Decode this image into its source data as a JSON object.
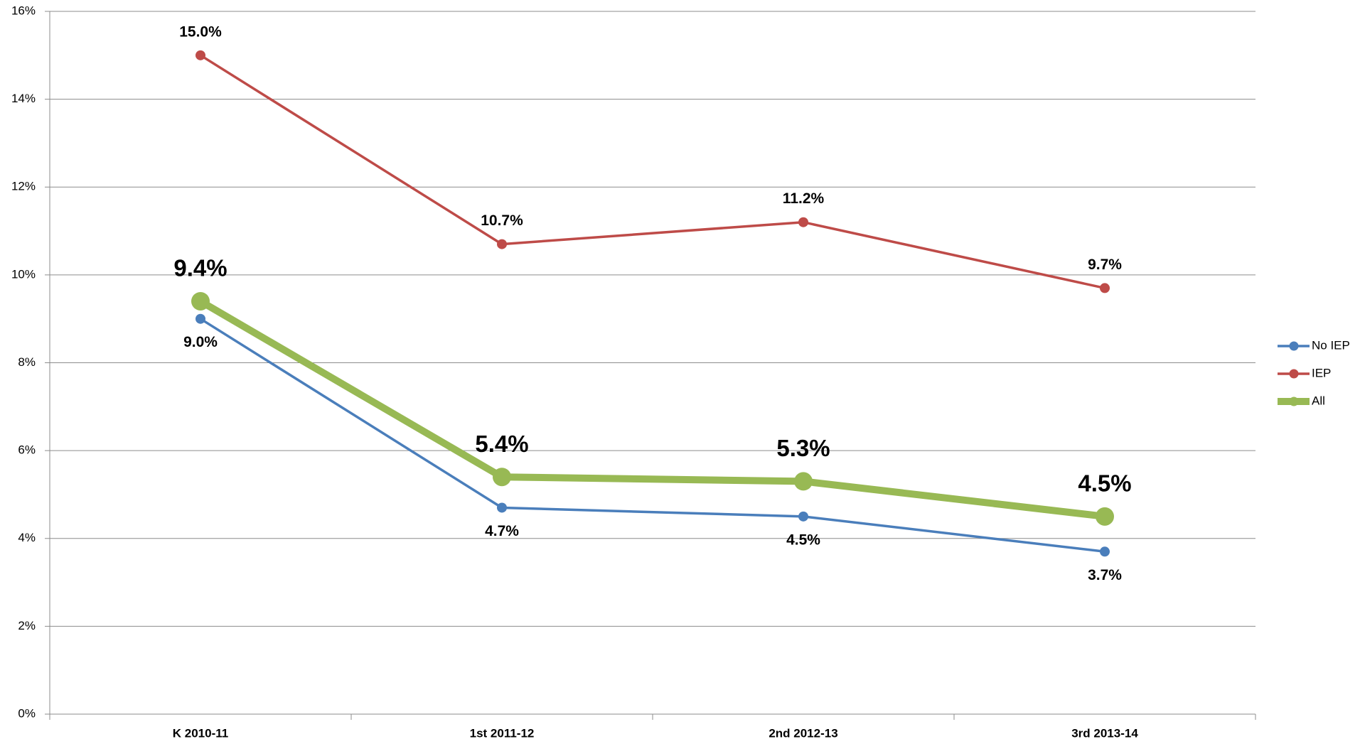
{
  "chart_data": {
    "type": "line",
    "categories": [
      "K  2010-11",
      "1st  2011-12",
      "2nd  2012-13",
      "3rd  2013-14"
    ],
    "ylim": [
      0,
      16
    ],
    "yticks": [
      {
        "value": 0,
        "label": "0%"
      },
      {
        "value": 2,
        "label": "2%"
      },
      {
        "value": 4,
        "label": "4%"
      },
      {
        "value": 6,
        "label": "6%"
      },
      {
        "value": 8,
        "label": "8%"
      },
      {
        "value": 10,
        "label": "10%"
      },
      {
        "value": 12,
        "label": "12%"
      },
      {
        "value": 14,
        "label": "14%"
      },
      {
        "value": 16,
        "label": "16%"
      }
    ],
    "grid": true,
    "legend": "right",
    "series": [
      {
        "name": "No IEP",
        "color": "#4a7ebb",
        "values": [
          9.0,
          4.7,
          4.5,
          3.7
        ],
        "value_labels": [
          "9.0%",
          "4.7%",
          "4.5%",
          "3.7%"
        ]
      },
      {
        "name": "IEP",
        "color": "#be4b48",
        "values": [
          15.0,
          10.7,
          11.2,
          9.7
        ],
        "value_labels": [
          "15.0%",
          "10.7%",
          "11.2%",
          "9.7%"
        ]
      },
      {
        "name": "All",
        "color": "#98b954",
        "values": [
          9.4,
          5.4,
          5.3,
          4.5
        ],
        "value_labels": [
          "9.4%",
          "5.4%",
          "5.3%",
          "4.5%"
        ]
      }
    ]
  }
}
